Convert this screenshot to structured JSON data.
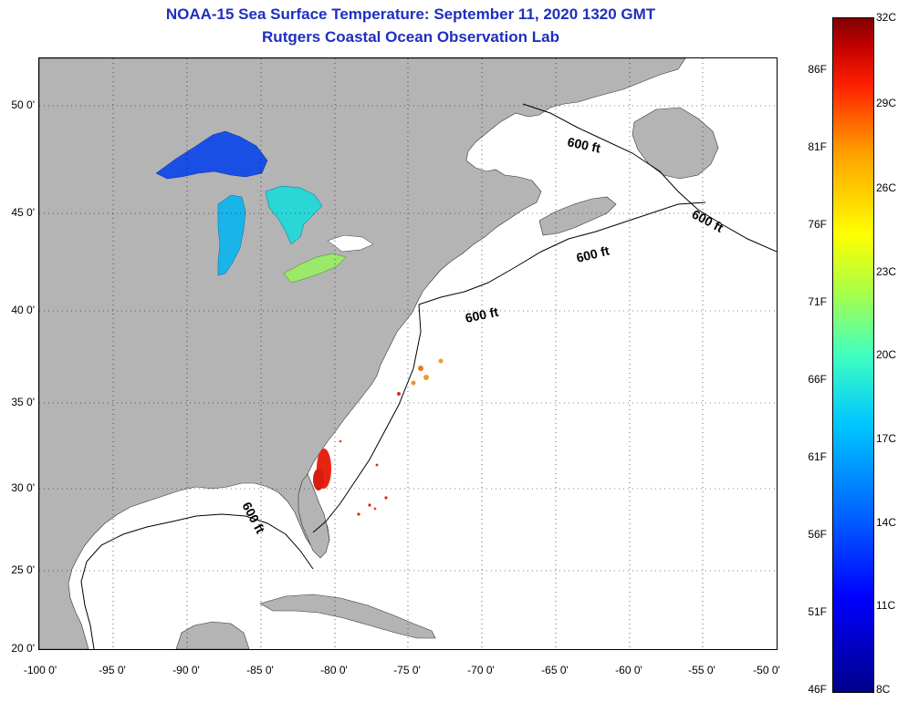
{
  "title_line1": "NOAA-15 Sea Surface Temperature:  September 11, 2020 1320 GMT",
  "title_line2": "Rutgers Coastal Ocean Observation Lab",
  "y_ticks": [
    "50 0'",
    "45 0'",
    "40 0'",
    "35 0'",
    "30 0'",
    "25 0'",
    "20 0'"
  ],
  "x_ticks": [
    "-100 0'",
    "-95 0'",
    "-90 0'",
    "-85 0'",
    "-80 0'",
    "-75 0'",
    "-70 0'",
    "-65 0'",
    "-60 0'",
    "-55 0'",
    "-50 0'"
  ],
  "contour_label": "600 ft",
  "colorbar_f": [
    "86F",
    "81F",
    "76F",
    "71F",
    "66F",
    "61F",
    "56F",
    "51F",
    "46F"
  ],
  "colorbar_c": [
    "32C",
    "29C",
    "26C",
    "23C",
    "20C",
    "17C",
    "14C",
    "11C",
    "8C"
  ],
  "colors": {
    "title": "#1f2fbf",
    "land": "#b4b4b4",
    "ocean": "#ffffff"
  }
}
